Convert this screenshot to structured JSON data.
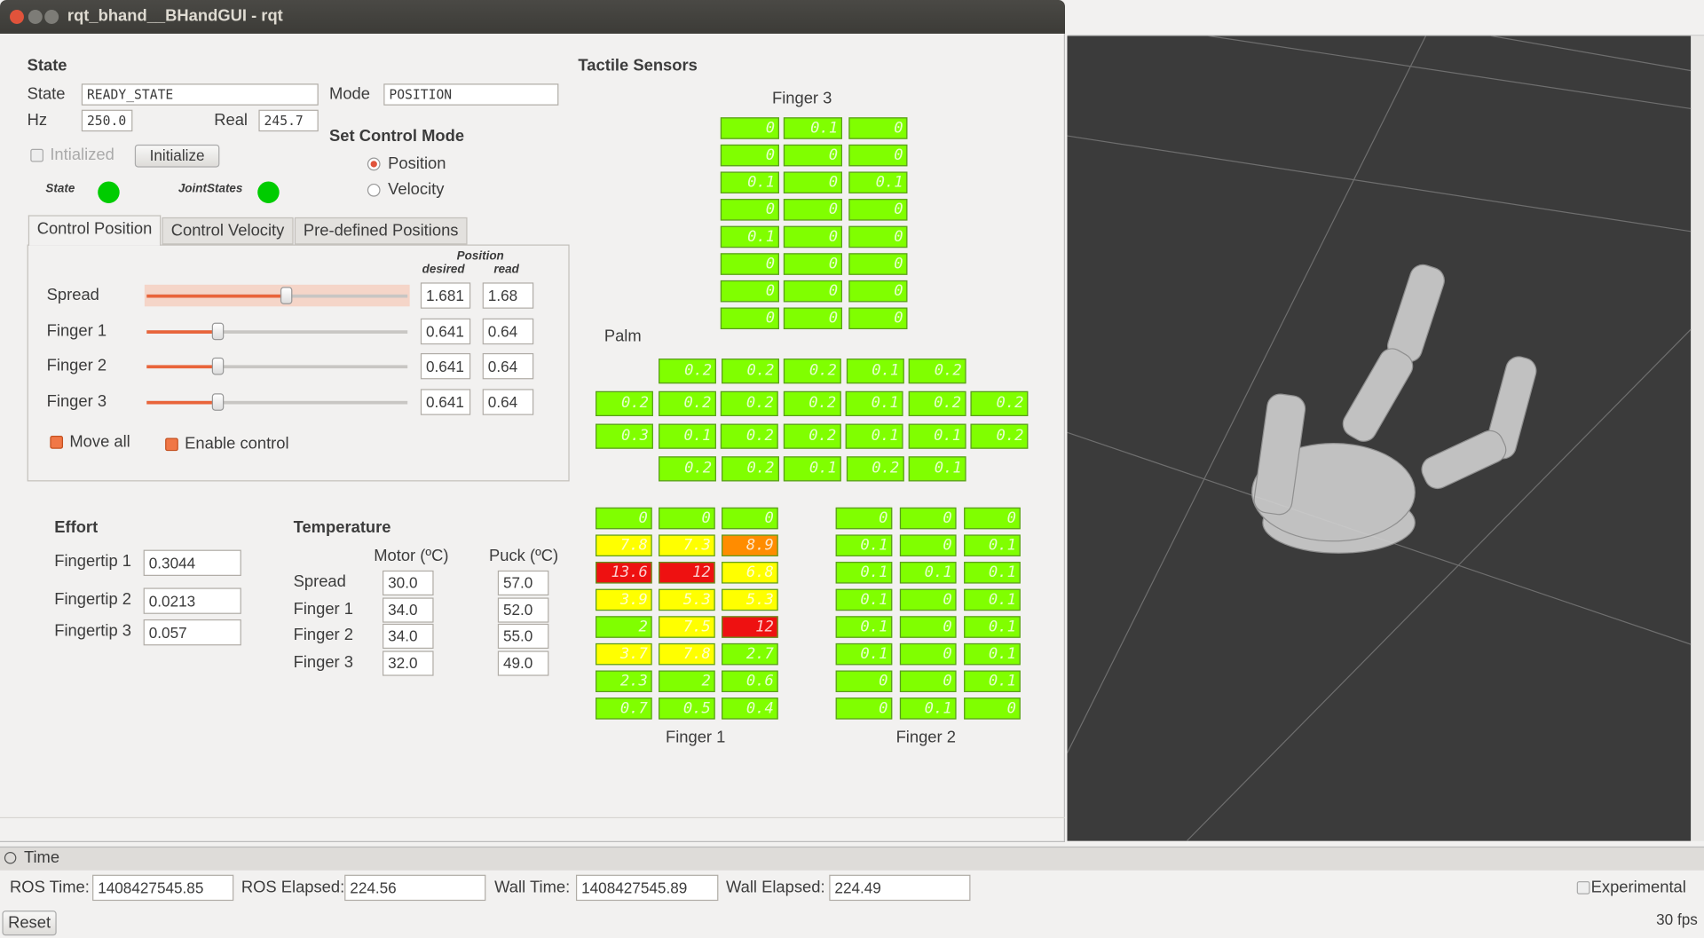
{
  "window": {
    "title": "rqt_bhand__BHandGUI - rqt"
  },
  "state": {
    "heading": "State",
    "state_label": "State",
    "state_value": "READY_STATE",
    "mode_label": "Mode",
    "mode_value": "POSITION",
    "hz_label": "Hz",
    "hz_value": "250.0",
    "real_label": "Real",
    "real_value": "245.7",
    "initialized_label": "Intialized",
    "initialize_button": "Initialize",
    "state_indicator": "State",
    "jointstates_indicator": "JointStates"
  },
  "control_mode": {
    "heading": "Set Control Mode",
    "options": [
      "Position",
      "Velocity"
    ]
  },
  "tabs": [
    "Control Position",
    "Control Velocity",
    "Pre-defined Positions"
  ],
  "position": {
    "header": "Position",
    "desired_header": "desired",
    "read_header": "read",
    "rows": [
      {
        "label": "Spread",
        "desired": "1.681",
        "read": "1.68"
      },
      {
        "label": "Finger 1",
        "desired": "0.641",
        "read": "0.64"
      },
      {
        "label": "Finger 2",
        "desired": "0.641",
        "read": "0.64"
      },
      {
        "label": "Finger 3",
        "desired": "0.641",
        "read": "0.64"
      }
    ],
    "move_all": "Move all",
    "enable_control": "Enable control"
  },
  "effort": {
    "heading": "Effort",
    "rows": [
      {
        "label": "Fingertip 1",
        "value": "0.3044"
      },
      {
        "label": "Fingertip 2",
        "value": "0.0213"
      },
      {
        "label": "Fingertip 3",
        "value": "0.057"
      }
    ]
  },
  "temperature": {
    "heading": "Temperature",
    "motor_header": "Motor (ºC)",
    "puck_header": "Puck (ºC)",
    "rows": [
      {
        "label": "Spread",
        "motor": "30.0",
        "puck": "57.0"
      },
      {
        "label": "Finger 1",
        "motor": "34.0",
        "puck": "52.0"
      },
      {
        "label": "Finger 2",
        "motor": "34.0",
        "puck": "55.0"
      },
      {
        "label": "Finger 3",
        "motor": "32.0",
        "puck": "49.0"
      }
    ]
  },
  "tactile": {
    "heading": "Tactile Sensors",
    "finger3": {
      "label": "Finger 3",
      "color": "#80ff00",
      "rows": [
        [
          "0",
          "0.1",
          "0"
        ],
        [
          "0",
          "0",
          "0"
        ],
        [
          "0.1",
          "0",
          "0.1"
        ],
        [
          "0",
          "0",
          "0"
        ],
        [
          "0.1",
          "0",
          "0"
        ],
        [
          "0",
          "0",
          "0"
        ],
        [
          "0",
          "0",
          "0"
        ],
        [
          "0",
          "0",
          "0"
        ]
      ]
    },
    "palm": {
      "label": "Palm",
      "color": "#80ff00",
      "rows": [
        [
          "0.2",
          "0.2",
          "0.2",
          "0.1",
          "0.2"
        ],
        [
          "0.2",
          "0.2",
          "0.2",
          "0.2",
          "0.1",
          "0.2",
          "0.2"
        ],
        [
          "0.3",
          "0.1",
          "0.2",
          "0.2",
          "0.1",
          "0.1",
          "0.2"
        ],
        [
          "0.2",
          "0.2",
          "0.1",
          "0.2",
          "0.1"
        ]
      ]
    },
    "finger1": {
      "label": "Finger 1",
      "rows": [
        [
          "0",
          "0",
          "0"
        ],
        [
          "7.8",
          "7.3",
          "8.9"
        ],
        [
          "13.6",
          "12",
          "6.8"
        ],
        [
          "3.9",
          "5.3",
          "5.3"
        ],
        [
          "2",
          "7.5",
          "12"
        ],
        [
          "3.7",
          "7.8",
          "2.7"
        ],
        [
          "2.3",
          "2",
          "0.6"
        ],
        [
          "0.7",
          "0.5",
          "0.4"
        ]
      ],
      "colors": [
        [
          "#80ff00",
          "#80ff00",
          "#80ff00"
        ],
        [
          "#ffff00",
          "#ffff00",
          "#ff8c00"
        ],
        [
          "#ee1111",
          "#ee1111",
          "#ffff00"
        ],
        [
          "#ffff00",
          "#ffff00",
          "#ffff00"
        ],
        [
          "#80ff00",
          "#ffff00",
          "#ee1111"
        ],
        [
          "#ffff00",
          "#ffff00",
          "#80ff00"
        ],
        [
          "#80ff00",
          "#80ff00",
          "#80ff00"
        ],
        [
          "#80ff00",
          "#80ff00",
          "#80ff00"
        ]
      ]
    },
    "finger2": {
      "label": "Finger 2",
      "color": "#80ff00",
      "rows": [
        [
          "0",
          "0",
          "0"
        ],
        [
          "0.1",
          "0",
          "0.1"
        ],
        [
          "0.1",
          "0.1",
          "0.1"
        ],
        [
          "0.1",
          "0",
          "0.1"
        ],
        [
          "0.1",
          "0",
          "0.1"
        ],
        [
          "0.1",
          "0",
          "0.1"
        ],
        [
          "0",
          "0",
          "0.1"
        ],
        [
          "0",
          "0.1",
          "0"
        ]
      ]
    }
  },
  "time_panel": {
    "title": "Time",
    "fields": [
      {
        "label": "ROS Time:",
        "value": "1408427545.85"
      },
      {
        "label": "ROS Elapsed:",
        "value": "224.56"
      },
      {
        "label": "Wall Time:",
        "value": "1408427545.89"
      },
      {
        "label": "Wall Elapsed:",
        "value": "224.49"
      }
    ],
    "experimental": "Experimental",
    "reset": "Reset",
    "fps": "30 fps"
  }
}
